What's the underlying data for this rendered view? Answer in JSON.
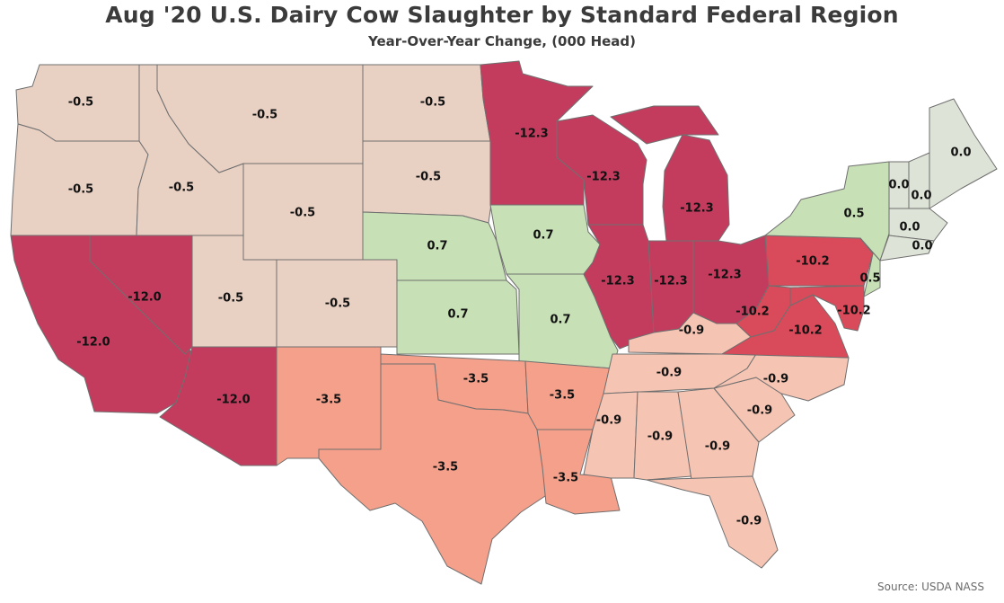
{
  "title": "Aug '20 U.S. Dairy Cow Slaughter by Standard Federal Region",
  "subtitle": "Year-Over-Year Change, (000 Head)",
  "source": "Source: USDA NASS",
  "colors": {
    "strong_negative": "#c33c5e",
    "negative_red": "#d94a5a",
    "salmon": "#f4a08a",
    "light_salmon": "#f5c4b3",
    "neutral_tan": "#e8d0c3",
    "light_green": "#c7e0b5",
    "gray_green": "#dde3d6"
  },
  "states": {
    "WA": "-0.5",
    "OR": "-0.5",
    "ID": "-0.5",
    "MT": "-0.5",
    "WY": "-0.5",
    "ND": "-0.5",
    "SD": "-0.5",
    "UT": "-0.5",
    "CO": "-0.5",
    "CA": "-12.0",
    "NV": "-12.0",
    "AZ": "-12.0",
    "NE": "0.7",
    "KS": "0.7",
    "IA": "0.7",
    "MO": "0.7",
    "MN": "-12.3",
    "WI": "-12.3",
    "MI": "-12.3",
    "IL": "-12.3",
    "IN": "-12.3",
    "OH": "-12.3",
    "NM": "-3.5",
    "TX": "-3.5",
    "OK": "-3.5",
    "AR": "-3.5",
    "LA": "-3.5",
    "KY": "-0.9",
    "TN": "-0.9",
    "MS": "-0.9",
    "AL": "-0.9",
    "GA": "-0.9",
    "SC": "-0.9",
    "NC": "-0.9",
    "FL": "-0.9",
    "PA": "-10.2",
    "WV": "-10.2",
    "VA": "-10.2",
    "MD": "-10.2",
    "NY": "0.5",
    "NJ": "0.5",
    "ME": "0.0",
    "VT": "0.0",
    "NH": "0.0",
    "MA": "0.0",
    "CT": "0.0"
  }
}
